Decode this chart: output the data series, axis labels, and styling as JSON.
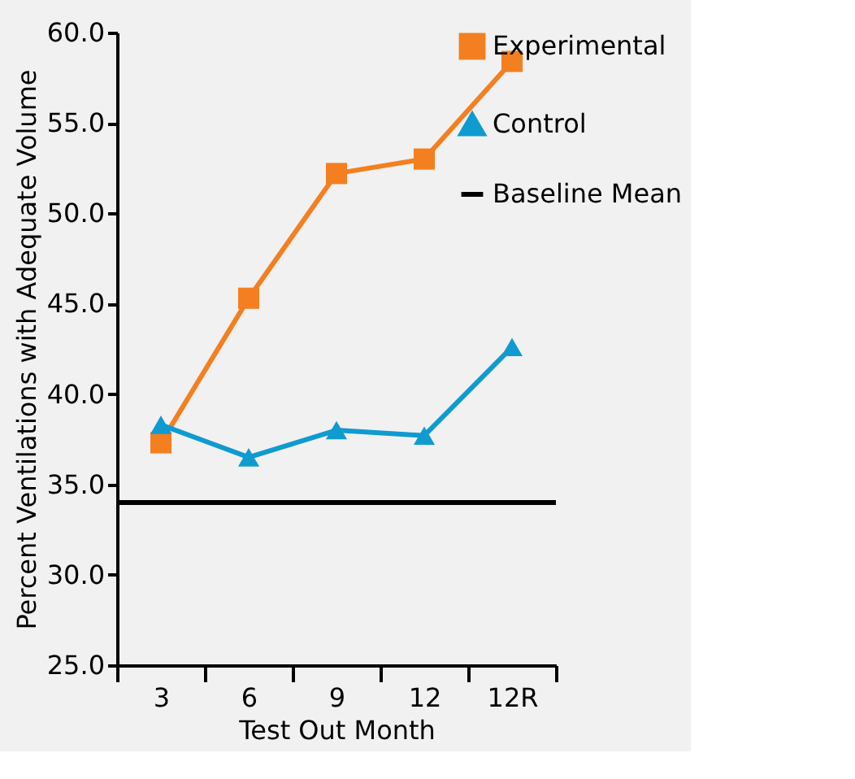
{
  "chart_data": {
    "type": "line",
    "xlabel": "Test Out Month",
    "ylabel": "Percent Ventilations with Adequate Volume",
    "categories": [
      "3",
      "6",
      "9",
      "12",
      "12R"
    ],
    "series": [
      {
        "name": "Experimental",
        "color": "#f47f20",
        "marker": "square",
        "values": [
          37.3,
          45.3,
          52.2,
          53.0,
          58.4
        ]
      },
      {
        "name": "Control",
        "color": "#0f9bd0",
        "marker": "triangle",
        "values": [
          38.3,
          36.5,
          38.0,
          37.7,
          42.6
        ]
      }
    ],
    "ref_lines": [
      {
        "axis": "y",
        "value": 34.0,
        "label": "Baseline Mean",
        "color": "#000000",
        "line_style": "solid"
      }
    ],
    "ylim": [
      25,
      60
    ],
    "yticks": [
      {
        "value": 25,
        "label": "25.0"
      },
      {
        "value": 30,
        "label": "30.0"
      },
      {
        "value": 35,
        "label": "35.0"
      },
      {
        "value": 40,
        "label": "40.0"
      },
      {
        "value": 45,
        "label": "45.0"
      },
      {
        "value": 50,
        "label": "50.0"
      },
      {
        "value": 55,
        "label": "55.0"
      },
      {
        "value": 60,
        "label": "60.0"
      }
    ],
    "grid": false,
    "legend": "right",
    "line_style": "solid"
  }
}
